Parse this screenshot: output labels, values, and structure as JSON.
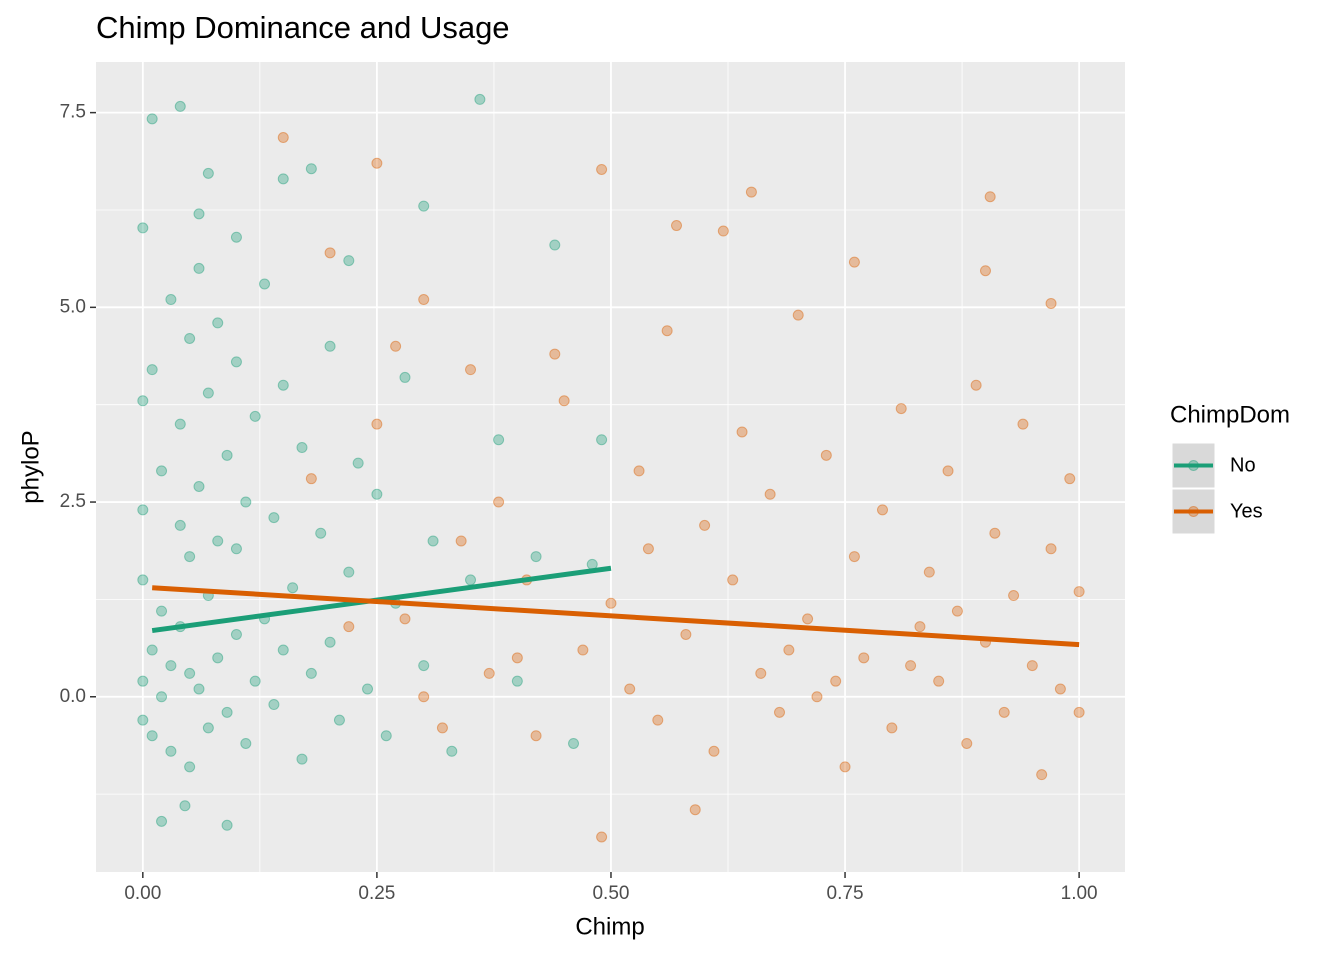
{
  "chart_data": {
    "type": "scatter",
    "title": "Chimp Dominance and Usage",
    "x_label": "Chimp",
    "y_label": "phyloP",
    "legend_title": "ChimpDom",
    "legend_position": "right",
    "grid": true,
    "xlim": [
      -0.05,
      1.049
    ],
    "ylim": [
      -2.25,
      8.15
    ],
    "xticks": [
      {
        "value": 0,
        "label": "0.00"
      },
      {
        "value": 0.25,
        "label": "0.25"
      },
      {
        "value": 0.5,
        "label": "0.50"
      },
      {
        "value": 0.75,
        "label": "0.75"
      },
      {
        "value": 1,
        "label": "1.00"
      }
    ],
    "yticks": [
      {
        "value": 0,
        "label": "0.0"
      },
      {
        "value": 2.5,
        "label": "2.5"
      },
      {
        "value": 5,
        "label": "5.0"
      },
      {
        "value": 7.5,
        "label": "7.5"
      }
    ],
    "series": [
      {
        "name": "No",
        "color": "#1b9e77",
        "x": [
          0.04,
          0.36,
          0.01,
          0.02,
          0.09,
          0.045,
          0.0,
          0.07,
          0.06,
          0.1,
          0.15,
          0.18,
          0.3,
          0.22,
          0.0,
          0.0,
          0.0,
          0.0,
          0.0,
          0.01,
          0.01,
          0.01,
          0.02,
          0.02,
          0.02,
          0.03,
          0.03,
          0.03,
          0.04,
          0.04,
          0.04,
          0.05,
          0.05,
          0.05,
          0.05,
          0.06,
          0.06,
          0.06,
          0.07,
          0.07,
          0.07,
          0.08,
          0.08,
          0.08,
          0.09,
          0.09,
          0.1,
          0.1,
          0.1,
          0.11,
          0.11,
          0.12,
          0.12,
          0.13,
          0.13,
          0.14,
          0.14,
          0.15,
          0.15,
          0.16,
          0.17,
          0.17,
          0.18,
          0.19,
          0.2,
          0.2,
          0.21,
          0.22,
          0.23,
          0.24,
          0.25,
          0.26,
          0.27,
          0.28,
          0.3,
          0.31,
          0.33,
          0.35,
          0.38,
          0.4,
          0.42,
          0.44,
          0.46,
          0.48,
          0.49
        ],
        "values": [
          7.58,
          7.67,
          7.42,
          -1.6,
          -1.65,
          -1.4,
          6.02,
          6.72,
          6.2,
          5.9,
          6.65,
          6.78,
          6.3,
          5.6,
          0.2,
          -0.3,
          1.5,
          2.4,
          3.8,
          0.6,
          -0.5,
          4.2,
          0.0,
          1.1,
          2.9,
          -0.7,
          0.4,
          5.1,
          0.9,
          2.2,
          3.5,
          -0.9,
          0.3,
          1.8,
          4.6,
          0.1,
          2.7,
          5.5,
          -0.4,
          1.3,
          3.9,
          0.5,
          2.0,
          4.8,
          -0.2,
          3.1,
          0.8,
          1.9,
          4.3,
          -0.6,
          2.5,
          0.2,
          3.6,
          1.0,
          5.3,
          -0.1,
          2.3,
          0.6,
          4.0,
          1.4,
          -0.8,
          3.2,
          0.3,
          2.1,
          0.7,
          4.5,
          -0.3,
          1.6,
          3.0,
          0.1,
          2.6,
          -0.5,
          1.2,
          4.1,
          0.4,
          2.0,
          -0.7,
          1.5,
          3.3,
          0.2,
          1.8,
          5.8,
          -0.6,
          1.7,
          3.3
        ],
        "trend": {
          "x": [
            0.01,
            0.5
          ],
          "values": [
            0.85,
            1.65
          ]
        }
      },
      {
        "name": "Yes",
        "color": "#d95f02",
        "x": [
          0.49,
          0.59,
          0.15,
          0.25,
          0.49,
          0.905,
          0.65,
          0.57,
          0.62,
          0.76,
          0.97,
          0.9,
          0.2,
          0.3,
          0.35,
          0.38,
          0.4,
          0.42,
          0.45,
          0.5,
          0.52,
          0.53,
          0.55,
          0.56,
          0.58,
          0.6,
          0.61,
          0.63,
          0.64,
          0.66,
          0.67,
          0.68,
          0.7,
          0.71,
          0.72,
          0.73,
          0.75,
          0.76,
          0.77,
          0.79,
          0.8,
          0.81,
          0.83,
          0.84,
          0.85,
          0.86,
          0.88,
          0.89,
          0.9,
          0.91,
          0.92,
          0.93,
          0.94,
          0.95,
          0.96,
          0.97,
          0.98,
          0.99,
          1.0,
          1.0,
          0.25,
          0.28,
          0.32,
          0.34,
          0.37,
          0.41,
          0.44,
          0.47,
          0.54,
          0.69,
          0.74,
          0.82,
          0.87,
          0.18,
          0.22,
          0.27,
          0.3
        ],
        "values": [
          -1.8,
          -1.45,
          7.18,
          6.85,
          6.77,
          6.42,
          6.48,
          6.05,
          5.98,
          5.58,
          5.05,
          5.47,
          5.7,
          5.1,
          4.2,
          2.5,
          0.5,
          -0.5,
          3.8,
          1.2,
          0.1,
          2.9,
          -0.3,
          4.7,
          0.8,
          2.2,
          -0.7,
          1.5,
          3.4,
          0.3,
          2.6,
          -0.2,
          4.9,
          1.0,
          0.0,
          3.1,
          -0.9,
          1.8,
          0.5,
          2.4,
          -0.4,
          3.7,
          0.9,
          1.6,
          0.2,
          2.9,
          -0.6,
          4.0,
          0.7,
          2.1,
          -0.2,
          1.3,
          3.5,
          0.4,
          -1.0,
          1.9,
          0.1,
          2.8,
          -0.2,
          1.35,
          3.5,
          1.0,
          -0.4,
          2.0,
          0.3,
          1.5,
          4.4,
          0.6,
          1.9,
          0.6,
          0.2,
          0.4,
          1.1,
          2.8,
          0.9,
          4.5,
          0.0
        ],
        "trend": {
          "x": [
            0.01,
            1.0
          ],
          "values": [
            1.4,
            0.67
          ]
        }
      }
    ]
  }
}
